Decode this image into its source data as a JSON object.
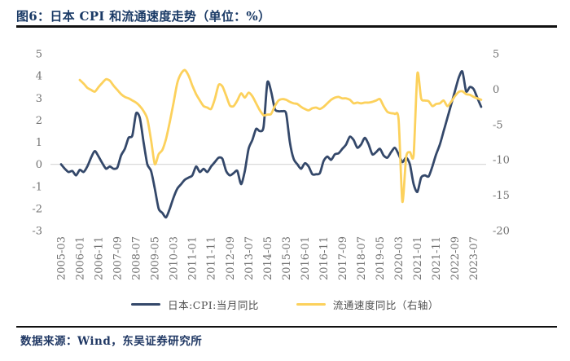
{
  "header": {
    "title": "图6：日本 CPI 和流通速度走势（单位：%）"
  },
  "footer": {
    "source": "数据来源：Wind，东吴证券研究所"
  },
  "colors": {
    "title_navy": "#1a3a66",
    "cpi_line": "#34486a",
    "velocity_line": "#fcd15c",
    "gridline": "#d9d9d9",
    "axis_text": "#737373",
    "legend_text": "#4d4d4d",
    "rule_black": "#101010"
  },
  "chart_data": {
    "type": "line",
    "title": "日本 CPI 和流通速度走势",
    "unit": "%",
    "x_tick_labels": [
      "2005-03",
      "2006-01",
      "2006-11",
      "2007-09",
      "2008-07",
      "2009-05",
      "2010-03",
      "2011-01",
      "2011-11",
      "2012-09",
      "2013-07",
      "2014-05",
      "2015-03",
      "2016-01",
      "2016-11",
      "2017-09",
      "2018-07",
      "2019-05",
      "2020-03",
      "2021-01",
      "2021-11",
      "2022-09",
      "2023-07"
    ],
    "x_tick_step_months": 10,
    "left_axis": {
      "min": -3,
      "max": 5,
      "ticks": [
        5,
        4,
        3,
        2,
        1,
        0,
        -1,
        -2,
        -3
      ]
    },
    "right_axis": {
      "min": -20,
      "max": 5,
      "ticks": [
        5,
        0,
        -5,
        -10,
        -15,
        -20
      ]
    },
    "gridline_at_left_value": 0,
    "grid": "single horizontal line at left-axis 0 only",
    "legend_position": "bottom-center",
    "series": [
      {
        "name": "日本:CPI:当月同比",
        "axis": "left",
        "color": "#34486a",
        "start_month": "2005-03",
        "step_months": 2,
        "values": [
          0.0,
          -0.2,
          -0.35,
          -0.3,
          -0.5,
          -0.25,
          -0.35,
          -0.1,
          0.3,
          0.6,
          0.35,
          0.05,
          -0.2,
          -0.1,
          -0.2,
          -0.15,
          0.4,
          0.7,
          1.2,
          1.3,
          2.3,
          2.1,
          1.0,
          0.0,
          -0.3,
          -1.1,
          -2.0,
          -2.2,
          -2.4,
          -2.0,
          -1.5,
          -1.1,
          -0.9,
          -0.7,
          -0.6,
          -0.5,
          -0.1,
          -0.35,
          -0.2,
          -0.35,
          -0.1,
          0.1,
          0.3,
          0.25,
          -0.3,
          -0.5,
          -0.4,
          -0.3,
          -0.9,
          -0.3,
          0.7,
          1.1,
          1.6,
          1.5,
          1.7,
          3.7,
          3.3,
          2.5,
          2.4,
          2.4,
          2.3,
          1.0,
          0.25,
          0.0,
          -0.2,
          0.05,
          -0.1,
          -0.45,
          -0.45,
          -0.4,
          0.15,
          0.35,
          0.2,
          0.45,
          0.5,
          0.7,
          0.9,
          1.25,
          1.1,
          0.75,
          0.9,
          1.2,
          0.9,
          0.45,
          0.55,
          0.7,
          0.4,
          0.3,
          0.55,
          0.75,
          0.45,
          0.1,
          0.3,
          0.0,
          -0.9,
          -1.25,
          -0.6,
          -0.5,
          -0.55,
          -0.1,
          0.45,
          0.9,
          1.5,
          2.1,
          2.7,
          3.3,
          3.9,
          4.2,
          3.3,
          3.5,
          3.4,
          3.0,
          2.6
        ]
      },
      {
        "name": "流通速度同比（右轴）",
        "axis": "right",
        "color": "#fcd15c",
        "start_month": "2006-01",
        "step_months": 2,
        "values": [
          1.3,
          0.8,
          0.2,
          -0.1,
          -0.35,
          0.3,
          0.9,
          1.4,
          1.2,
          0.5,
          -0.1,
          -0.7,
          -1.1,
          -1.3,
          -1.6,
          -1.9,
          -2.4,
          -3.1,
          -4.2,
          -7.2,
          -10.6,
          -9.2,
          -8.6,
          -7.0,
          -4.6,
          -1.9,
          0.9,
          2.2,
          2.7,
          1.9,
          0.5,
          -0.7,
          -1.6,
          -2.4,
          -2.6,
          -2.8,
          -1.4,
          0.6,
          0.4,
          -0.9,
          -2.3,
          -2.4,
          -1.6,
          -0.6,
          -1.2,
          -0.5,
          -1.0,
          -2.0,
          -3.0,
          -3.7,
          -3.6,
          -3.5,
          -2.4,
          -1.6,
          -1.4,
          -1.5,
          -1.8,
          -2.0,
          -2.1,
          -2.5,
          -2.8,
          -3.0,
          -2.7,
          -2.6,
          -2.8,
          -2.5,
          -2.0,
          -1.5,
          -1.2,
          -1.1,
          -1.3,
          -1.3,
          -1.5,
          -2.0,
          -1.9,
          -2.0,
          -1.9,
          -1.9,
          -1.8,
          -1.6,
          -1.4,
          -2.4,
          -3.2,
          -3.4,
          -3.5,
          -4.3,
          -15.9,
          -9.6,
          -8.9,
          -9.3,
          2.2,
          -1.3,
          -1.6,
          -1.7,
          -2.4,
          -2.1,
          -2.0,
          -1.6,
          -2.4,
          -1.8,
          -1.0,
          -0.4,
          -0.3,
          -0.7,
          -0.8,
          -1.1,
          -1.3,
          -1.5
        ]
      }
    ]
  }
}
